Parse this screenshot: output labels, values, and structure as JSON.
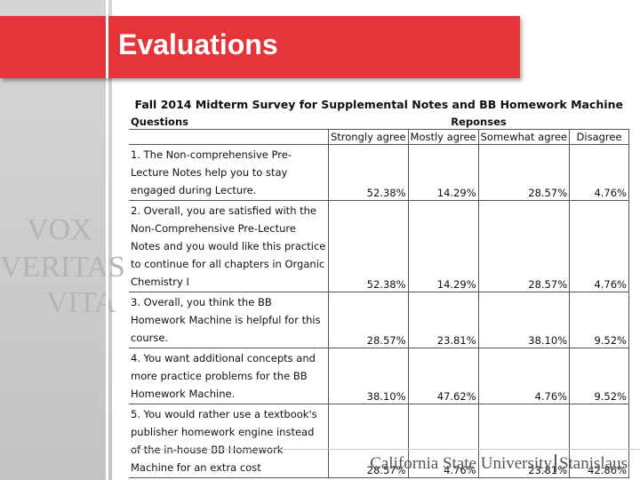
{
  "slide": {
    "title": "Evaluations",
    "motto": [
      "VOX",
      "VERITAS",
      "VITA"
    ],
    "footer": {
      "university": "California State University",
      "campus": "Stanislaus"
    }
  },
  "table": {
    "title": "Fall 2014 Midterm Survey for Supplemental Notes and BB Homework Machine",
    "questions_header": "Questions",
    "responses_header": "Reponses",
    "columns": [
      "Strongly agree",
      "Mostly agree",
      "Somewhat agree",
      "Disagree"
    ],
    "rows": [
      {
        "question": "1. The Non-comprehensive Pre-Lecture Notes help you to stay engaged during Lecture.",
        "values": [
          "52.38%",
          "14.29%",
          "28.57%",
          "4.76%"
        ]
      },
      {
        "question": "2. Overall, you are satisfied with the Non-Comprehensive Pre-Lecture Notes and you would like this practice to continue for all chapters in Organic Chemistry I",
        "values": [
          "52.38%",
          "14.29%",
          "28.57%",
          "4.76%"
        ]
      },
      {
        "question": "3. Overall, you think the BB Homework Machine is helpful for this course.",
        "values": [
          "28.57%",
          "23.81%",
          "38.10%",
          "9.52%"
        ]
      },
      {
        "question": "4. You want additional concepts and more practice problems for the BB Homework Machine.",
        "values": [
          "38.10%",
          "47.62%",
          "4.76%",
          "9.52%"
        ]
      },
      {
        "question": "5. You would rather use a textbook's publisher homework engine instead of the in-house BB Homework Machine for an extra cost",
        "values": [
          "28.57%",
          "4.76%",
          "23.81%",
          "42.86%"
        ]
      }
    ]
  }
}
